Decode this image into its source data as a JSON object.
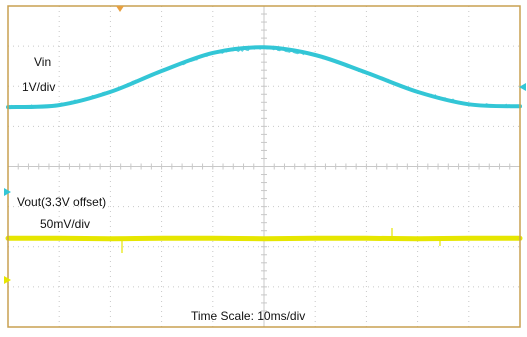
{
  "chart_data": {
    "type": "line",
    "title": "",
    "xlabel": "Time Scale: 10ms/div",
    "grid": true,
    "x_divisions": 10,
    "y_divisions": 8,
    "series": [
      {
        "name": "Vin",
        "scale": "1V/div",
        "color": "#33c6d6",
        "description_values_in_divisions": "sinusoid from top edge of screen",
        "x": [
          0,
          1,
          2,
          3,
          4,
          5,
          6,
          7,
          8,
          9,
          10
        ],
        "y": [
          2.52,
          2.47,
          2.14,
          1.62,
          1.17,
          1.03,
          1.22,
          1.66,
          2.14,
          2.45,
          2.5
        ]
      },
      {
        "name": "Vout(3.3V offset)",
        "scale": "50mV/div",
        "color": "#e6e600",
        "x": [
          0,
          1,
          2,
          3,
          4,
          5,
          6,
          7,
          8,
          9,
          10
        ],
        "y": [
          5.79,
          5.79,
          5.8,
          5.79,
          5.79,
          5.8,
          5.79,
          5.79,
          5.8,
          5.79,
          5.79
        ]
      }
    ]
  },
  "labels": {
    "vin_name": "Vin",
    "vin_scale": "1V/div",
    "vout_name": "Vout(3.3V offset)",
    "vout_scale": "50mV/div",
    "time_scale": "Time Scale: 10ms/div"
  },
  "colors": {
    "frame": "#c8a050",
    "grid": "#c8c8c8",
    "trigger_marker": "#e8a040",
    "ch1_marker": "#33c6d6",
    "ch2_marker": "#e6e600"
  }
}
